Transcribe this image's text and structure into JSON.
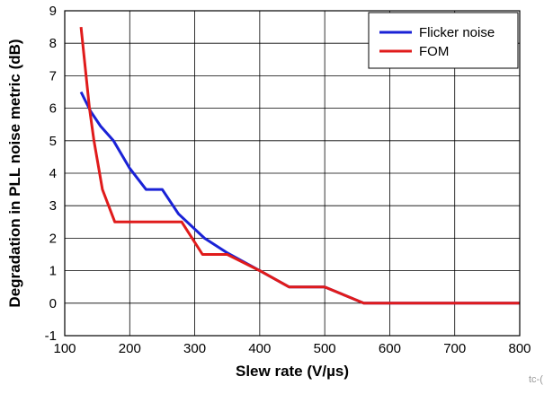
{
  "chart_data": {
    "type": "line",
    "xlabel": "Slew rate (V/µs)",
    "ylabel": "Degradation in PLL noise metric (dB)",
    "xlim": [
      100,
      800
    ],
    "ylim": [
      -1,
      9
    ],
    "x_ticks": [
      "100",
      "200",
      "300",
      "400",
      "500",
      "600",
      "700",
      "800"
    ],
    "y_ticks": [
      "-1",
      "0",
      "1",
      "2",
      "3",
      "4",
      "5",
      "6",
      "7",
      "8",
      "9"
    ],
    "grid": true,
    "legend_position": "top-right",
    "figure_id": "tc-(",
    "series": [
      {
        "name": "Flicker noise",
        "color": "#1a22d6",
        "points": [
          [
            125,
            6.5
          ],
          [
            140,
            5.9
          ],
          [
            155,
            5.45
          ],
          [
            175,
            5.0
          ],
          [
            200,
            4.15
          ],
          [
            225,
            3.5
          ],
          [
            250,
            3.5
          ],
          [
            275,
            2.75
          ],
          [
            315,
            2.0
          ],
          [
            350,
            1.55
          ],
          [
            400,
            1.0
          ],
          [
            445,
            0.5
          ],
          [
            500,
            0.5
          ],
          [
            560,
            0.0
          ],
          [
            800,
            0.0
          ]
        ]
      },
      {
        "name": "FOM",
        "color": "#e01b1b",
        "points": [
          [
            125,
            8.5
          ],
          [
            138,
            6.0
          ],
          [
            145,
            5.0
          ],
          [
            158,
            3.5
          ],
          [
            177,
            2.5
          ],
          [
            280,
            2.5
          ],
          [
            312,
            1.5
          ],
          [
            350,
            1.5
          ],
          [
            400,
            1.0
          ],
          [
            445,
            0.5
          ],
          [
            500,
            0.5
          ],
          [
            560,
            0.0
          ],
          [
            800,
            0.0
          ]
        ]
      }
    ]
  }
}
